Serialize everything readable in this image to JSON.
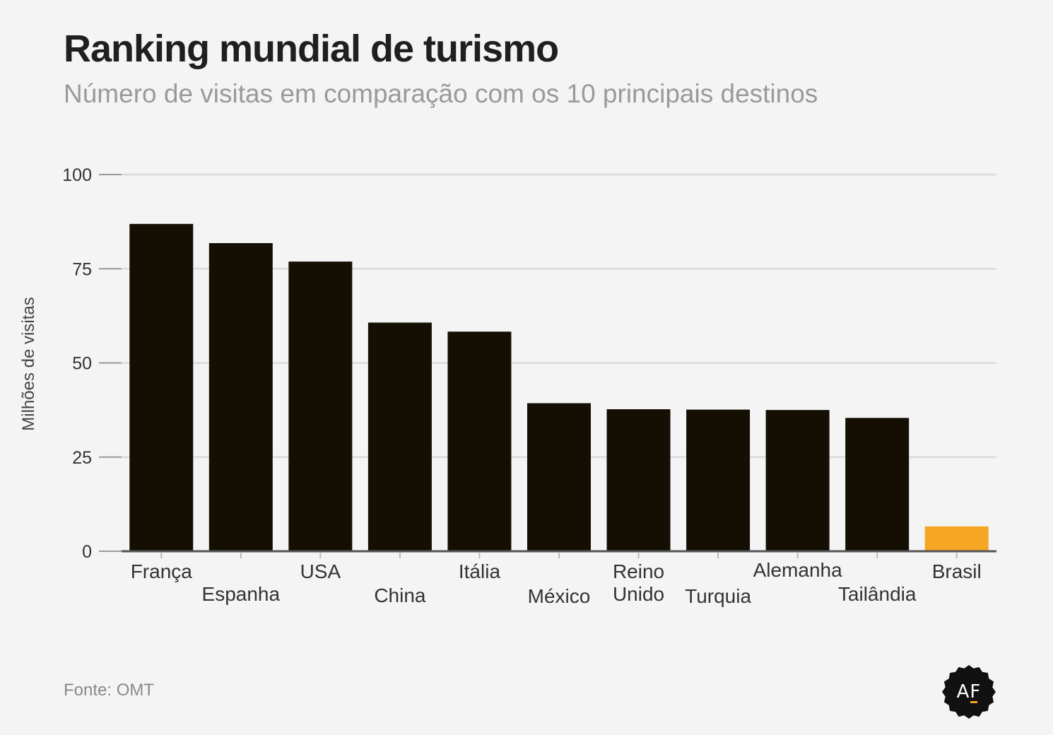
{
  "header": {
    "title": "Ranking mundial de turismo",
    "subtitle": "Número de visitas em comparação com os 10 principais destinos"
  },
  "footer": {
    "source": "Fonte: OMT",
    "logo_text": "AF"
  },
  "colors": {
    "bar": "#150f03",
    "highlight": "#f5a623",
    "grid": "#dedede",
    "axis": "#555555"
  },
  "chart_data": {
    "type": "bar",
    "title": "Ranking mundial de turismo",
    "subtitle": "Número de visitas em comparação com os 10 principais destinos",
    "ylabel": "Milhões de visitas",
    "xlabel": "",
    "ylim": [
      0,
      100
    ],
    "yticks": [
      0,
      25,
      50,
      75,
      100
    ],
    "grid": true,
    "categories": [
      [
        "França"
      ],
      [
        "Espanha"
      ],
      [
        "USA"
      ],
      [
        "China"
      ],
      [
        "Itália"
      ],
      [
        "México"
      ],
      [
        "Reino",
        "Unido"
      ],
      [
        "Turquia"
      ],
      [
        "Alemanha"
      ],
      [
        "Tailândia"
      ],
      [
        "Brasil"
      ]
    ],
    "values": [
      86.9,
      81.8,
      76.9,
      60.7,
      58.3,
      39.3,
      37.7,
      37.6,
      37.5,
      35.4,
      6.6
    ],
    "highlight_index": 10
  }
}
